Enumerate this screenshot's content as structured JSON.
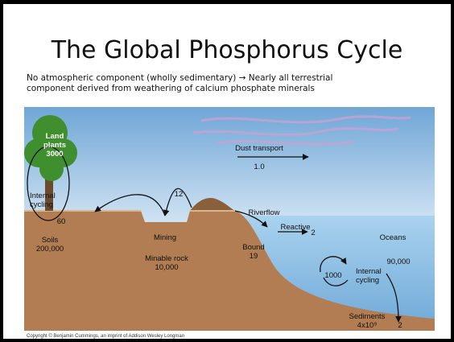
{
  "title": "The Global Phosphorus Cycle",
  "subtitle": [
    "No atmospheric component (wholly sedimentary) → Nearly all terrestrial",
    "component derived from weathering of calcium phosphate minerals"
  ],
  "diagram": {
    "labels": [
      "Land",
      "plants",
      "3000",
      "Internal",
      "cycling",
      "60",
      "Soils",
      "200,000",
      "12",
      "Mining",
      "Minable rock",
      "10,000",
      "Dust transport",
      "1.0",
      "Riverflow",
      "Reactive",
      "2",
      "Bound",
      "19",
      "Oceans",
      "90,000",
      "1000",
      "Internal",
      "cycling",
      "Sediments",
      "4x10⁹",
      "2"
    ]
  },
  "copyright": "Copyright © Benjamin Cummings, an imprint of Addison Wesley Longman"
}
